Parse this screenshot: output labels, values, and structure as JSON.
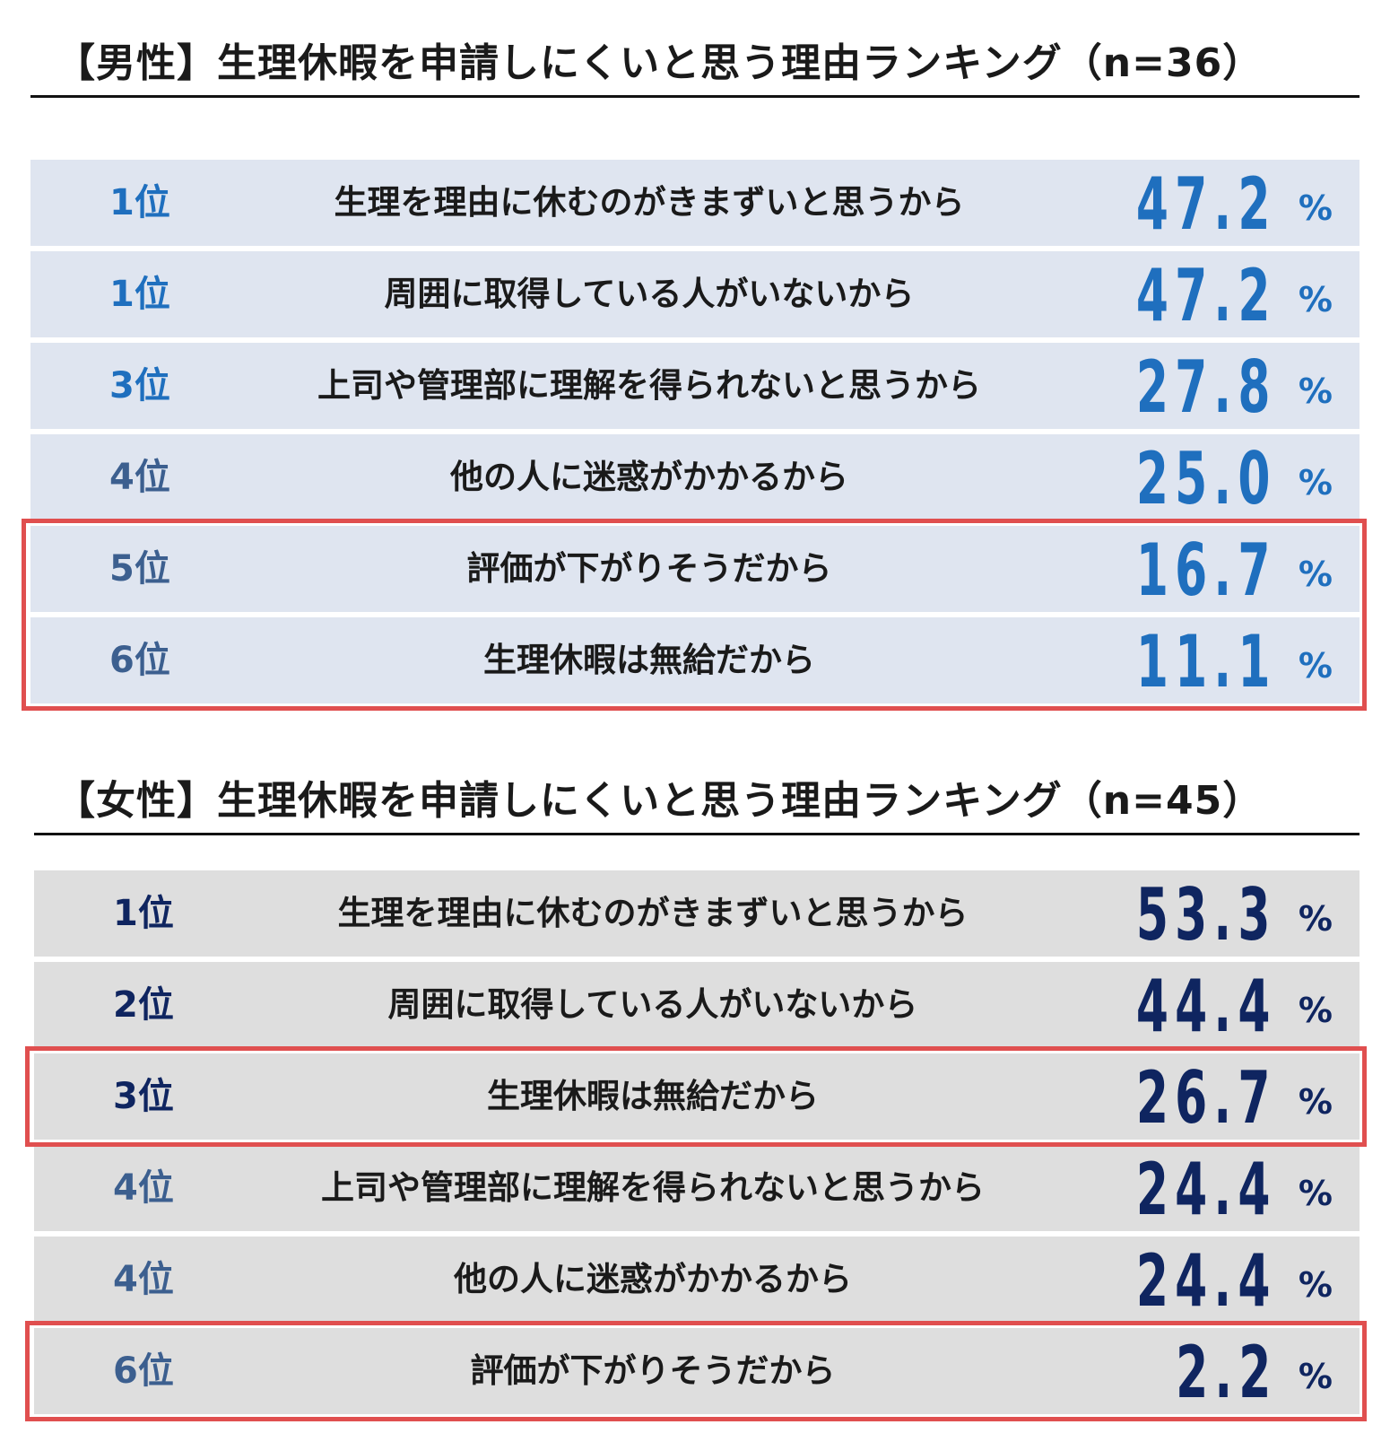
{
  "colors": {
    "male_row_bg": "#dfe5f0",
    "female_row_bg": "#dedede",
    "male_value": "#1f6fbe",
    "male_rank_top": "#1f6fbe",
    "male_rank_rest": "#3c5f8f",
    "female_value": "#0f2560",
    "female_rank_top": "#0f2560",
    "female_rank_rest": "#3c5f8f",
    "highlight_border": "#e04f4f"
  },
  "chart_data": [
    {
      "type": "table",
      "title": "【男性】生理休暇を申請しにくいと思う理由ランキング（n=36）",
      "unit": "%",
      "rows": [
        {
          "rank": "1位",
          "reason": "生理を理由に休むのがきまずいと思うから",
          "value": "47.2",
          "highlighted": false
        },
        {
          "rank": "1位",
          "reason": "周囲に取得している人がいないから",
          "value": "47.2",
          "highlighted": false
        },
        {
          "rank": "3位",
          "reason": "上司や管理部に理解を得られないと思うから",
          "value": "27.8",
          "highlighted": false
        },
        {
          "rank": "4位",
          "reason": "他の人に迷惑がかかるから",
          "value": "25.0",
          "highlighted": false
        },
        {
          "rank": "5位",
          "reason": "評価が下がりそうだから",
          "value": "16.7",
          "highlighted": true
        },
        {
          "rank": "6位",
          "reason": "生理休暇は無給だから",
          "value": "11.1",
          "highlighted": true
        }
      ]
    },
    {
      "type": "table",
      "title": "【女性】生理休暇を申請しにくいと思う理由ランキング（n=45）",
      "unit": "%",
      "rows": [
        {
          "rank": "1位",
          "reason": "生理を理由に休むのがきまずいと思うから",
          "value": "53.3",
          "highlighted": false
        },
        {
          "rank": "2位",
          "reason": "周囲に取得している人がいないから",
          "value": "44.4",
          "highlighted": false
        },
        {
          "rank": "3位",
          "reason": "生理休暇は無給だから",
          "value": "26.7",
          "highlighted": true
        },
        {
          "rank": "4位",
          "reason": "上司や管理部に理解を得られないと思うから",
          "value": "24.4",
          "highlighted": false
        },
        {
          "rank": "4位",
          "reason": "他の人に迷惑がかかるから",
          "value": "24.4",
          "highlighted": false
        },
        {
          "rank": "6位",
          "reason": "評価が下がりそうだから",
          "value": "2.2",
          "highlighted": true
        }
      ]
    }
  ]
}
